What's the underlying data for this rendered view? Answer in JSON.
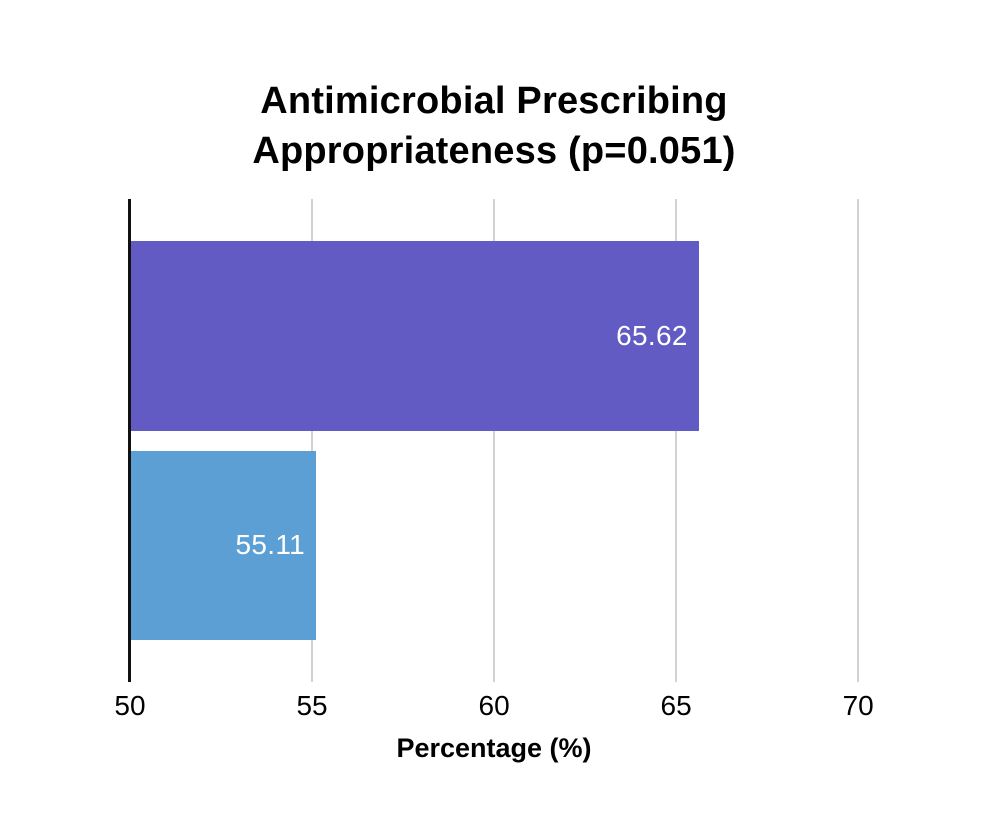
{
  "chart": {
    "title_line1": "Antimicrobial Prescribing",
    "title_line2": "Appropriateness (p=0.051)"
  },
  "chart_data": {
    "type": "bar",
    "orientation": "horizontal",
    "title": "Antimicrobial Prescribing Appropriateness (p=0.051)",
    "xlabel": "Percentage (%)",
    "ylabel": "",
    "xlim": [
      50,
      72
    ],
    "baseline": 50,
    "x_ticks": [
      50,
      55,
      60,
      65,
      70
    ],
    "grid": true,
    "legend": false,
    "categories": [
      "bar-1",
      "bar-2"
    ],
    "series": [
      {
        "name": "bar-1",
        "value": 65.62,
        "label": "65.62",
        "color": "#625BC4"
      },
      {
        "name": "bar-2",
        "value": 55.11,
        "label": "55.11",
        "color": "#5C9FD4"
      }
    ],
    "colors": {
      "axis_line": "#111111",
      "gridline": "#D2D2D2",
      "value_label": "#FFFFFF",
      "text": "#000000",
      "background": "#FFFFFF"
    }
  }
}
